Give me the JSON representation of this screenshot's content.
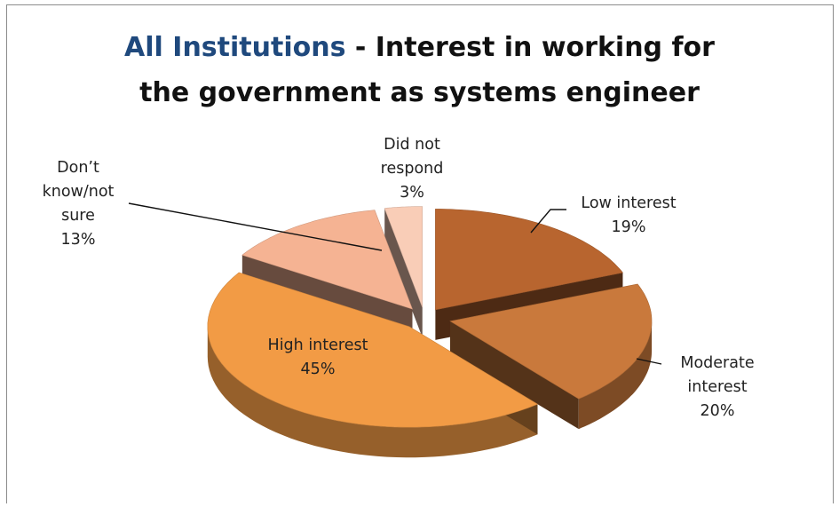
{
  "chart_data": {
    "type": "pie",
    "title_highlight": "All Institutions",
    "title_rest_line1": " - Interest in working for",
    "title_line2": "the government as systems engineer",
    "slices": [
      {
        "key": "low",
        "label_lines": [
          "Low interest"
        ],
        "value": 19,
        "value_text": "19%",
        "color": "#b8652f"
      },
      {
        "key": "moderate",
        "label_lines": [
          "Moderate",
          "interest"
        ],
        "value": 20,
        "value_text": "20%",
        "color": "#c9793c"
      },
      {
        "key": "high",
        "label_lines": [
          "High interest"
        ],
        "value": 45,
        "value_text": "45%",
        "color": "#f29b45"
      },
      {
        "key": "dontknow",
        "label_lines": [
          "Don’t",
          "know/not",
          "sure"
        ],
        "value": 13,
        "value_text": "13%",
        "color": "#f5b393"
      },
      {
        "key": "noresp",
        "label_lines": [
          "Did not",
          "respond"
        ],
        "value": 3,
        "value_text": "3%",
        "color": "#f9cdb7"
      }
    ]
  }
}
